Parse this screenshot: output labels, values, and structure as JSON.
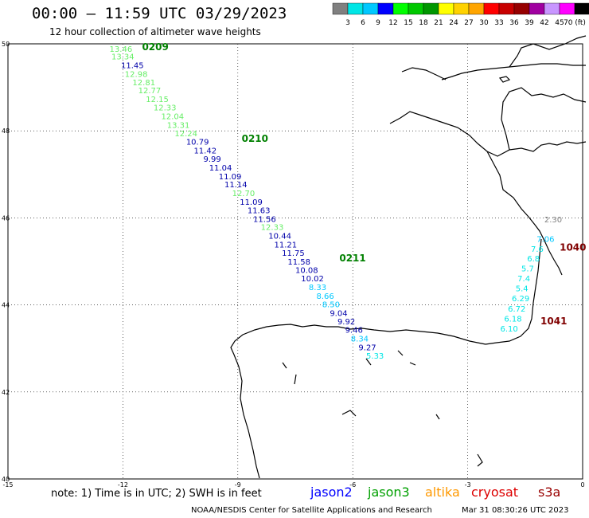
{
  "header": {
    "title": "00:00 – 11:59 UTC 03/29/2023",
    "subtitle": "12 hour collection of altimeter wave heights"
  },
  "legend": {
    "colors": [
      "#808080",
      "#00e6e6",
      "#00c8ff",
      "#0000ff",
      "#00ff00",
      "#00c800",
      "#009600",
      "#ffff00",
      "#ffd200",
      "#ffa500",
      "#ff0000",
      "#c80000",
      "#960000",
      "#a000a0",
      "#c896ff",
      "#ff00ff",
      "#000000"
    ],
    "labels": [
      "3",
      "6",
      "9",
      "12",
      "15",
      "18",
      "21",
      "24",
      "27",
      "30",
      "33",
      "36",
      "39",
      "42",
      "45",
      "70 (ft)"
    ]
  },
  "axes": {
    "lon_ticks": [
      "-15",
      "-12",
      "-9",
      "-6",
      "-3",
      "0"
    ],
    "lat_ticks": [
      "50",
      "48",
      "46",
      "44",
      "42",
      "40"
    ]
  },
  "passes": [
    {
      "label": "0209",
      "color": "#008000",
      "lon": -11.5,
      "lat": 49.85
    },
    {
      "label": "0210",
      "color": "#008000",
      "lon": -8.9,
      "lat": 47.75
    },
    {
      "label": "0211",
      "color": "#008000",
      "lon": -6.35,
      "lat": 45.0
    },
    {
      "label": "1040",
      "color": "#800000",
      "lon": -0.6,
      "lat": 45.25
    },
    {
      "label": "1041",
      "color": "#800000",
      "lon": -1.1,
      "lat": 43.55
    }
  ],
  "track_west": [
    {
      "v": "13.46",
      "c": "#66ee66",
      "lon": -12.35,
      "lat": 49.82
    },
    {
      "v": "13.34",
      "c": "#66ee66",
      "lon": -12.3,
      "lat": 49.64
    },
    {
      "v": "11.45",
      "c": "#0000aa",
      "lon": -12.05,
      "lat": 49.44
    },
    {
      "v": "12.98",
      "c": "#66ee66",
      "lon": -11.95,
      "lat": 49.24
    },
    {
      "v": "12.81",
      "c": "#66ee66",
      "lon": -11.75,
      "lat": 49.05
    },
    {
      "v": "12.77",
      "c": "#66ee66",
      "lon": -11.6,
      "lat": 48.86
    },
    {
      "v": "12.15",
      "c": "#66ee66",
      "lon": -11.4,
      "lat": 48.66
    },
    {
      "v": "12.33",
      "c": "#66ee66",
      "lon": -11.2,
      "lat": 48.47
    },
    {
      "v": "12.04",
      "c": "#66ee66",
      "lon": -11.0,
      "lat": 48.27
    },
    {
      "v": "13.31",
      "c": "#66ee66",
      "lon": -10.85,
      "lat": 48.07
    },
    {
      "v": "12.24",
      "c": "#66ee66",
      "lon": -10.65,
      "lat": 47.88
    },
    {
      "v": "10.79",
      "c": "#0000aa",
      "lon": -10.35,
      "lat": 47.68
    },
    {
      "v": "11.42",
      "c": "#0000aa",
      "lon": -10.15,
      "lat": 47.48
    },
    {
      "v": "9.99",
      "c": "#0000aa",
      "lon": -9.9,
      "lat": 47.29
    },
    {
      "v": "11.04",
      "c": "#0000aa",
      "lon": -9.75,
      "lat": 47.09
    },
    {
      "v": "11.09",
      "c": "#0000aa",
      "lon": -9.5,
      "lat": 46.89
    },
    {
      "v": "11.14",
      "c": "#0000aa",
      "lon": -9.35,
      "lat": 46.7
    },
    {
      "v": "12.70",
      "c": "#66ee66",
      "lon": -9.15,
      "lat": 46.5
    },
    {
      "v": "11.09",
      "c": "#0000aa",
      "lon": -8.95,
      "lat": 46.3
    },
    {
      "v": "11.63",
      "c": "#0000aa",
      "lon": -8.75,
      "lat": 46.11
    },
    {
      "v": "11.56",
      "c": "#0000aa",
      "lon": -8.6,
      "lat": 45.91
    },
    {
      "v": "12.33",
      "c": "#66ee66",
      "lon": -8.4,
      "lat": 45.72
    },
    {
      "v": "10.44",
      "c": "#0000aa",
      "lon": -8.2,
      "lat": 45.52
    },
    {
      "v": "11.21",
      "c": "#0000aa",
      "lon": -8.05,
      "lat": 45.32
    },
    {
      "v": "11.75",
      "c": "#0000aa",
      "lon": -7.85,
      "lat": 45.13
    },
    {
      "v": "11.58",
      "c": "#0000aa",
      "lon": -7.7,
      "lat": 44.93
    },
    {
      "v": "10.08",
      "c": "#0000aa",
      "lon": -7.5,
      "lat": 44.73
    },
    {
      "v": "10.02",
      "c": "#0000aa",
      "lon": -7.35,
      "lat": 44.54
    },
    {
      "v": "8.33",
      "c": "#00c8ff",
      "lon": -7.15,
      "lat": 44.34
    },
    {
      "v": "8.66",
      "c": "#00c8ff",
      "lon": -6.95,
      "lat": 44.14
    },
    {
      "v": "8.50",
      "c": "#00c8ff",
      "lon": -6.8,
      "lat": 43.95
    },
    {
      "v": "9.04",
      "c": "#0000aa",
      "lon": -6.6,
      "lat": 43.75
    },
    {
      "v": "9.92",
      "c": "#0000aa",
      "lon": -6.4,
      "lat": 43.55
    },
    {
      "v": "9.46",
      "c": "#0000aa",
      "lon": -6.2,
      "lat": 43.36
    },
    {
      "v": "8.34",
      "c": "#00c8ff",
      "lon": -6.05,
      "lat": 43.16
    },
    {
      "v": "9.27",
      "c": "#0000aa",
      "lon": -5.85,
      "lat": 42.96
    },
    {
      "v": "5.33",
      "c": "#00e6e6",
      "lon": -5.65,
      "lat": 42.77
    }
  ],
  "track_east": [
    {
      "v": "2.30",
      "c": "#808080",
      "lon": -1.0,
      "lat": 45.9
    },
    {
      "v": "7.06",
      "c": "#00c8ff",
      "lon": -1.2,
      "lat": 45.45
    },
    {
      "v": "7.6",
      "c": "#00e6e6",
      "lon": -1.35,
      "lat": 45.22
    },
    {
      "v": "6.8",
      "c": "#00e6e6",
      "lon": -1.45,
      "lat": 45.0
    },
    {
      "v": "5.7",
      "c": "#00e6e6",
      "lon": -1.6,
      "lat": 44.77
    },
    {
      "v": "7.4",
      "c": "#00e6e6",
      "lon": -1.7,
      "lat": 44.54
    },
    {
      "v": "5.4",
      "c": "#00e6e6",
      "lon": -1.75,
      "lat": 44.31
    },
    {
      "v": "6.29",
      "c": "#00e6e6",
      "lon": -1.85,
      "lat": 44.08
    },
    {
      "v": "6.72",
      "c": "#00e6e6",
      "lon": -1.95,
      "lat": 43.85
    },
    {
      "v": "6.18",
      "c": "#00e6e6",
      "lon": -2.05,
      "lat": 43.62
    },
    {
      "v": "6.10",
      "c": "#00e6e6",
      "lon": -2.15,
      "lat": 43.39
    }
  ],
  "satellites": [
    {
      "name": "jason2",
      "color": "#0000ff"
    },
    {
      "name": "jason3",
      "color": "#00a000"
    },
    {
      "name": "altika",
      "color": "#ff9900"
    },
    {
      "name": "cryosat",
      "color": "#dd0000"
    },
    {
      "name": "s3a",
      "color": "#990000"
    }
  ],
  "footer": {
    "note": "note: 1) Time is in UTC; 2) SWH is in feet",
    "credit": "NOAA/NESDIS Center for Satellite Applications and Research",
    "timestamp": "Mar 31 08:30:26 UTC 2023"
  }
}
